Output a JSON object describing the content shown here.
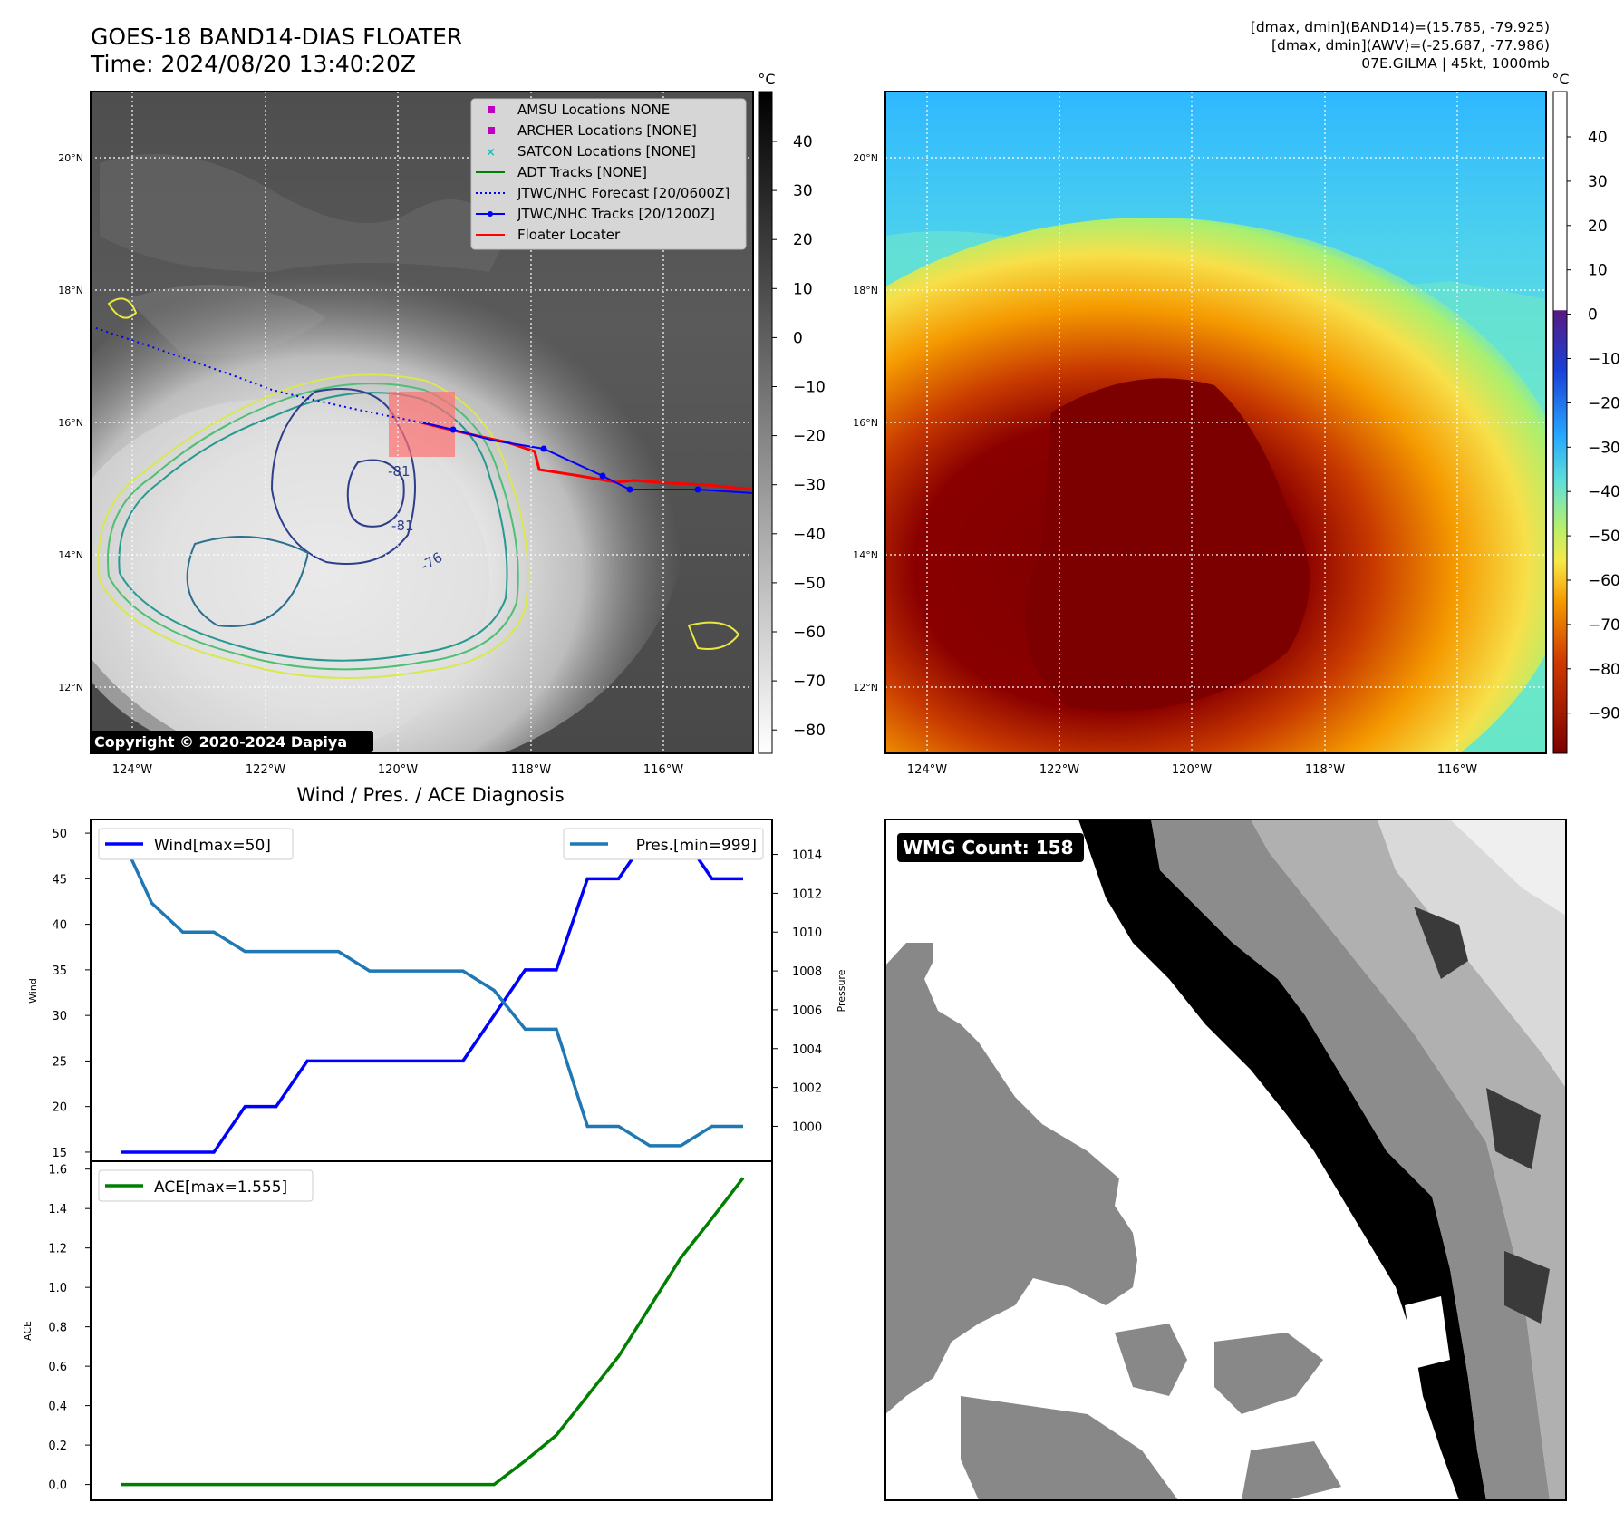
{
  "title": {
    "line1": "GOES-18 BAND14-DIAS FLOATER",
    "line2": "Time: 2024/08/20 13:40:20Z"
  },
  "header_right": {
    "line1": "[dmax, dmin](BAND14)=(15.785, -79.925)",
    "line2": "[dmax, dmin](AWV)=(-25.687, -77.986)",
    "line3": "07E.GILMA | 45kt, 1000mb"
  },
  "map_axes": {
    "lat_ticks": [
      "20°N",
      "18°N",
      "16°N",
      "14°N",
      "12°N"
    ],
    "lon_ticks": [
      "124°W",
      "122°W",
      "120°W",
      "118°W",
      "116°W"
    ]
  },
  "ir_map": {
    "copyright": "Copyright © 2020-2024 Dapiya",
    "contour_labels": [
      "-81",
      "-81",
      "-76"
    ],
    "legend": [
      {
        "label": "AMSU Locations NONE",
        "marker": "square",
        "color": "#bf00bf"
      },
      {
        "label": "ARCHER Locations [NONE]",
        "marker": "square",
        "color": "#bf00bf"
      },
      {
        "label": "SATCON Locations [NONE]",
        "marker": "x",
        "color": "#17bfbf"
      },
      {
        "label": "ADT Tracks [NONE]",
        "marker": "line",
        "color": "#008000"
      },
      {
        "label": "JTWC/NHC Forecast [20/0600Z]",
        "marker": "dotted",
        "color": "#0000ff"
      },
      {
        "label": "JTWC/NHC Tracks [20/1200Z]",
        "marker": "line-dot",
        "color": "#0000ff"
      },
      {
        "label": "Floater Locater",
        "marker": "line",
        "color": "#ff0000"
      }
    ],
    "colorbar": {
      "unit": "°C",
      "ticks": [
        "40",
        "30",
        "20",
        "10",
        "0",
        "−10",
        "−20",
        "−30",
        "−40",
        "−50",
        "−60",
        "−70",
        "−80"
      ]
    }
  },
  "awv_map": {
    "colorbar": {
      "unit": "°C",
      "ticks": [
        "40",
        "30",
        "20",
        "10",
        "0",
        "−10",
        "−20",
        "−30",
        "−40",
        "−50",
        "−60",
        "−70",
        "−80",
        "−90"
      ]
    }
  },
  "wmg": {
    "label": "WMG Count: 158"
  },
  "chart_data": [
    {
      "type": "line",
      "title": "Wind / Pres. / ACE Diagnosis",
      "ylabel": "Wind",
      "y2label": "Pressure",
      "ylim": [
        14,
        51.5
      ],
      "y2lim": [
        998.2,
        1015.8
      ],
      "yticks": [
        15,
        20,
        25,
        30,
        35,
        40,
        45,
        50
      ],
      "y2ticks": [
        1000,
        1002,
        1004,
        1006,
        1008,
        1010,
        1012,
        1014
      ],
      "x": [
        0,
        1,
        2,
        3,
        4,
        5,
        6,
        7,
        8,
        9,
        10,
        11,
        12,
        13,
        14,
        15,
        16,
        17,
        18,
        19,
        20
      ],
      "series": [
        {
          "name": "Wind[max=50]",
          "axis": "left",
          "color": "#0000ff",
          "values": [
            15,
            15,
            15,
            15,
            20,
            20,
            25,
            25,
            25,
            25,
            25,
            25,
            30,
            35,
            35,
            45,
            45,
            50,
            50,
            45,
            45
          ]
        },
        {
          "name": "Pres.[min=999]",
          "axis": "right",
          "color": "#1f77b4",
          "values": [
            1015,
            1011.5,
            1010,
            1010,
            1009,
            1009,
            1009,
            1009,
            1008,
            1008,
            1008,
            1008,
            1007,
            1005,
            1005,
            1000,
            1000,
            999,
            999,
            1000,
            1000
          ]
        }
      ]
    },
    {
      "type": "line",
      "ylabel": "ACE",
      "ylim": [
        -0.08,
        1.64
      ],
      "yticks": [
        "0.0",
        "0.2",
        "0.4",
        "0.6",
        "0.8",
        "1.0",
        "1.2",
        "1.4",
        "1.6"
      ],
      "x": [
        0,
        1,
        2,
        3,
        4,
        5,
        6,
        7,
        8,
        9,
        10,
        11,
        12,
        13,
        14,
        15,
        16,
        17,
        18,
        19,
        20
      ],
      "series": [
        {
          "name": "ACE[max=1.555]",
          "color": "#008000",
          "values": [
            0,
            0,
            0,
            0,
            0,
            0,
            0,
            0,
            0,
            0,
            0,
            0,
            0,
            0.12,
            0.25,
            0.45,
            0.65,
            0.9,
            1.15,
            1.35,
            1.555
          ]
        }
      ]
    }
  ]
}
